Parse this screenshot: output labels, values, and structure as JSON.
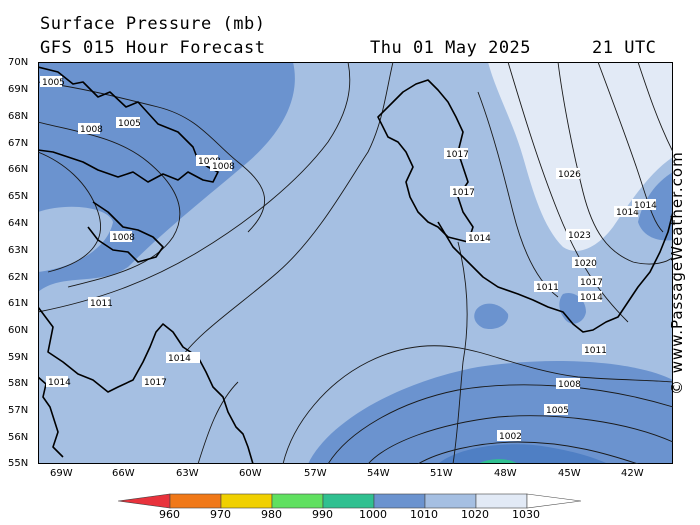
{
  "header": {
    "title": "Surface Pressure (mb)",
    "subtitle": "GFS 015 Hour Forecast",
    "datetime": "Thu 01 May 2025",
    "time_utc": "21 UTC"
  },
  "credit": "© www.PassageWeather.com",
  "latitude_labels": [
    "70N",
    "69N",
    "68N",
    "67N",
    "66N",
    "65N",
    "64N",
    "63N",
    "62N",
    "61N",
    "60N",
    "59N",
    "58N",
    "57N",
    "56N",
    "55N"
  ],
  "longitude_labels": [
    "69W",
    "66W",
    "63W",
    "60W",
    "57W",
    "54W",
    "51W",
    "48W",
    "45W",
    "42W"
  ],
  "legend": {
    "labels": [
      "960",
      "970",
      "980",
      "990",
      "1000",
      "1010",
      "1020",
      "1030"
    ],
    "colors": [
      "#e8323c",
      "#f07818",
      "#f0d000",
      "#60e060",
      "#30c090",
      "#6b93cf",
      "#a5bfe2",
      "#e2eaf6"
    ]
  },
  "isobar_labels": [
    {
      "text": "1005"
    },
    {
      "text": "1008"
    },
    {
      "text": "1005"
    },
    {
      "text": "1008"
    },
    {
      "text": "1008"
    },
    {
      "text": "1008"
    },
    {
      "text": "1011"
    },
    {
      "text": "1014"
    },
    {
      "text": "1017"
    },
    {
      "text": "1014"
    },
    {
      "text": "1017"
    },
    {
      "text": "1017"
    },
    {
      "text": "1014"
    },
    {
      "text": "1026"
    },
    {
      "text": "1023"
    },
    {
      "text": "1020"
    },
    {
      "text": "1017"
    },
    {
      "text": "1014"
    },
    {
      "text": "1011"
    },
    {
      "text": "1014"
    },
    {
      "text": "1014"
    },
    {
      "text": "1011"
    },
    {
      "text": "1008"
    },
    {
      "text": "1005"
    },
    {
      "text": "1002"
    }
  ],
  "colors": {
    "low_blue": "#6b93cf",
    "mid_blue": "#a5bfe2",
    "high_blue": "#e2eaf6",
    "coast": "#000000",
    "isobar": "#1a1a1a"
  }
}
